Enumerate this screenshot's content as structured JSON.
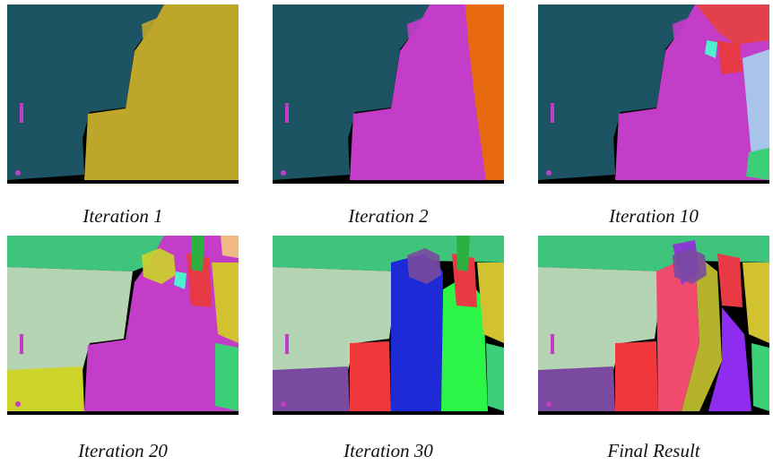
{
  "panels": [
    {
      "caption": "Iteration 1"
    },
    {
      "caption": "Iteration 2"
    },
    {
      "caption": "Iteration 10"
    },
    {
      "caption": "Iteration 20"
    },
    {
      "caption": "Iteration 30"
    },
    {
      "caption": "Final Result"
    }
  ]
}
